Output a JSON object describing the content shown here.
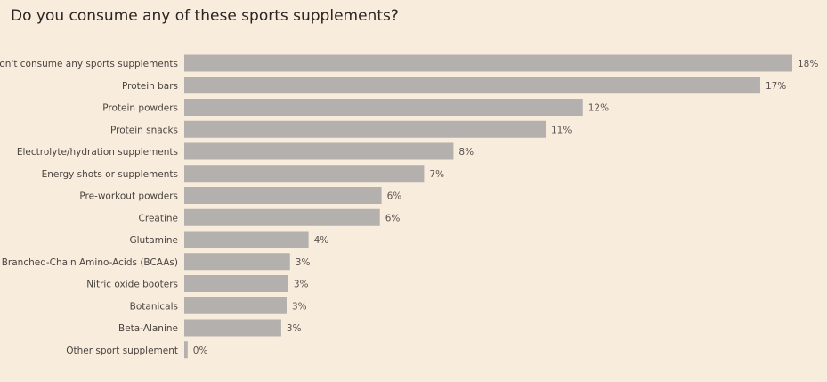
{
  "chart_data": {
    "type": "bar",
    "orientation": "horizontal",
    "title": "Do you consume any of these sports supplements?",
    "categories": [
      "I don't consume any sports supplements",
      "Protein bars",
      "Protein powders",
      "Protein snacks",
      "Electrolyte/hydration supplements",
      "Energy shots or supplements",
      "Pre-workout powders",
      "Creatine",
      "Glutamine",
      "Branched-Chain Amino-Acids (BCAAs)",
      "Nitric oxide booters",
      "Botanicals",
      "Beta-Alanine",
      "Other sport supplement"
    ],
    "values": [
      18.0,
      17.05,
      11.8,
      10.7,
      7.97,
      7.1,
      5.84,
      5.79,
      3.68,
      3.13,
      3.08,
      3.03,
      2.87,
      0.1
    ],
    "data_labels": [
      "18%",
      "17%",
      "12%",
      "11%",
      "8%",
      "7%",
      "6%",
      "6%",
      "4%",
      "3%",
      "3%",
      "3%",
      "3%",
      "0%"
    ],
    "xlim": [
      0,
      18
    ],
    "grid": false,
    "legend": "none",
    "bar_color": "#b3b0ad",
    "background": "#f8ecdd"
  }
}
